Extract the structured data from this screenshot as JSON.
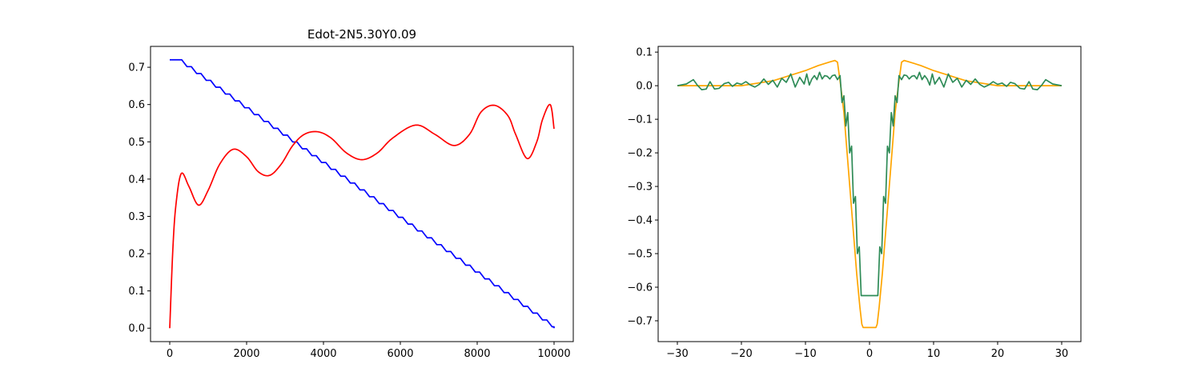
{
  "chart_data": [
    {
      "type": "line",
      "title": "Edot-2N5.30Y0.09",
      "xlim": [
        -500,
        10500
      ],
      "ylim": [
        -0.036,
        0.756
      ],
      "xticks": [
        0,
        2000,
        4000,
        6000,
        8000,
        10000
      ],
      "yticks": [
        0.0,
        0.1,
        0.2,
        0.3,
        0.4,
        0.5,
        0.6,
        0.7
      ],
      "grid": false,
      "series": [
        {
          "color": "#0000ff",
          "shape": "descending-staircase",
          "x": [
            0,
            200,
            10000
          ],
          "y": [
            0.72,
            0.72,
            0.0
          ],
          "step_period": 250,
          "step_fraction": 0.45
        },
        {
          "color": "#ff0000",
          "shape": "damped-oscillation",
          "x": [
            0,
            80,
            160,
            300,
            500,
            750,
            1000,
            1300,
            1650,
            2000,
            2300,
            2600,
            2900,
            3200,
            3500,
            3850,
            4200,
            4600,
            5000,
            5400,
            5800,
            6400,
            6900,
            7400,
            7800,
            8100,
            8450,
            8800,
            9000,
            9300,
            9550,
            9700,
            9900,
            10000
          ],
          "y": [
            0.0,
            0.21,
            0.33,
            0.415,
            0.38,
            0.33,
            0.37,
            0.44,
            0.48,
            0.46,
            0.42,
            0.41,
            0.44,
            0.49,
            0.52,
            0.527,
            0.51,
            0.47,
            0.452,
            0.47,
            0.51,
            0.545,
            0.52,
            0.49,
            0.52,
            0.58,
            0.598,
            0.57,
            0.52,
            0.455,
            0.5,
            0.56,
            0.6,
            0.535
          ]
        }
      ]
    },
    {
      "type": "line",
      "title": "",
      "xlim": [
        -33,
        33
      ],
      "ylim": [
        -0.762,
        0.117
      ],
      "xticks": [
        -30,
        -20,
        -10,
        0,
        10,
        20,
        30
      ],
      "yticks": [
        0.1,
        0.0,
        -0.1,
        -0.2,
        -0.3,
        -0.4,
        -0.5,
        -0.6,
        -0.7
      ],
      "grid": false,
      "series": [
        {
          "color": "#ffa500",
          "x": [
            -30,
            -20,
            -15,
            -10,
            -8,
            -6,
            -5.4,
            -5,
            -4.5,
            -4,
            -3.5,
            -3,
            -2.5,
            -2,
            -1.5,
            -1.2,
            -1,
            1,
            1.2,
            1.5,
            2,
            2.5,
            3,
            3.5,
            4,
            4.5,
            5,
            5.4,
            6,
            8,
            10,
            15,
            20,
            30
          ],
          "y": [
            0.0,
            0.0,
            0.015,
            0.045,
            0.06,
            0.072,
            0.075,
            0.07,
            0.0,
            -0.08,
            -0.2,
            -0.32,
            -0.44,
            -0.56,
            -0.66,
            -0.71,
            -0.72,
            -0.72,
            -0.71,
            -0.66,
            -0.56,
            -0.44,
            -0.32,
            -0.2,
            -0.08,
            0.0,
            0.07,
            0.075,
            0.072,
            0.06,
            0.045,
            0.015,
            0.0,
            0.0
          ]
        },
        {
          "color": "#2e8b57",
          "x": [
            -30,
            -28.6,
            -27.5,
            -26.9,
            -26.2,
            -25.5,
            -24.9,
            -24.2,
            -23.5,
            -22.7,
            -22.0,
            -21.4,
            -20.7,
            -20.0,
            -19.3,
            -18.6,
            -17.9,
            -17.2,
            -16.5,
            -15.8,
            -15.1,
            -14.4,
            -13.7,
            -13.0,
            -12.3,
            -11.6,
            -10.9,
            -10.2,
            -9.8,
            -9.4,
            -9.0,
            -8.6,
            -8.2,
            -7.8,
            -7.4,
            -7.0,
            -6.6,
            -6.2,
            -5.8,
            -5.4,
            -5.0,
            -4.6,
            -4.3,
            -4.0,
            -3.7,
            -3.4,
            -3.1,
            -2.8,
            -2.5,
            -2.2,
            -1.9,
            -1.6,
            -1.3,
            -1.0,
            1.0,
            1.3,
            1.6,
            1.9,
            2.2,
            2.5,
            2.8,
            3.1,
            3.4,
            3.7,
            4.0,
            4.3,
            4.6,
            5.0,
            5.4,
            5.8,
            6.2,
            6.6,
            7.0,
            7.4,
            7.8,
            8.2,
            8.6,
            9.0,
            9.4,
            9.8,
            10.2,
            10.9,
            11.6,
            12.3,
            13.0,
            13.7,
            14.4,
            15.1,
            15.8,
            16.5,
            17.2,
            17.9,
            18.6,
            19.3,
            20.0,
            20.7,
            21.4,
            22.0,
            22.7,
            23.5,
            24.2,
            24.9,
            25.5,
            26.2,
            26.9,
            27.5,
            28.6,
            30
          ],
          "y": [
            0.0,
            0.005,
            0.018,
            0.002,
            -0.012,
            -0.01,
            0.012,
            -0.01,
            -0.008,
            0.006,
            0.01,
            -0.002,
            0.008,
            0.004,
            0.012,
            0.002,
            -0.004,
            0.004,
            0.02,
            0.004,
            0.016,
            -0.004,
            0.022,
            0.01,
            0.035,
            -0.004,
            0.025,
            0.005,
            0.035,
            0.002,
            0.02,
            0.03,
            0.018,
            0.04,
            0.02,
            0.03,
            0.028,
            0.02,
            0.03,
            0.032,
            0.018,
            0.03,
            -0.05,
            -0.03,
            -0.12,
            -0.08,
            -0.2,
            -0.18,
            -0.35,
            -0.33,
            -0.5,
            -0.48,
            -0.625,
            -0.625,
            -0.625,
            -0.625,
            -0.48,
            -0.5,
            -0.33,
            -0.35,
            -0.18,
            -0.2,
            -0.08,
            -0.12,
            -0.03,
            -0.05,
            0.03,
            0.018,
            0.032,
            0.03,
            0.02,
            0.028,
            0.03,
            0.02,
            0.04,
            0.018,
            0.03,
            0.02,
            0.002,
            0.035,
            0.005,
            0.025,
            -0.004,
            0.035,
            0.01,
            0.022,
            -0.004,
            0.016,
            0.004,
            0.02,
            0.004,
            -0.004,
            0.002,
            0.012,
            0.004,
            0.008,
            -0.002,
            0.01,
            0.006,
            -0.008,
            -0.01,
            0.012,
            -0.01,
            -0.012,
            0.002,
            0.018,
            0.005,
            0.0
          ]
        }
      ]
    }
  ]
}
